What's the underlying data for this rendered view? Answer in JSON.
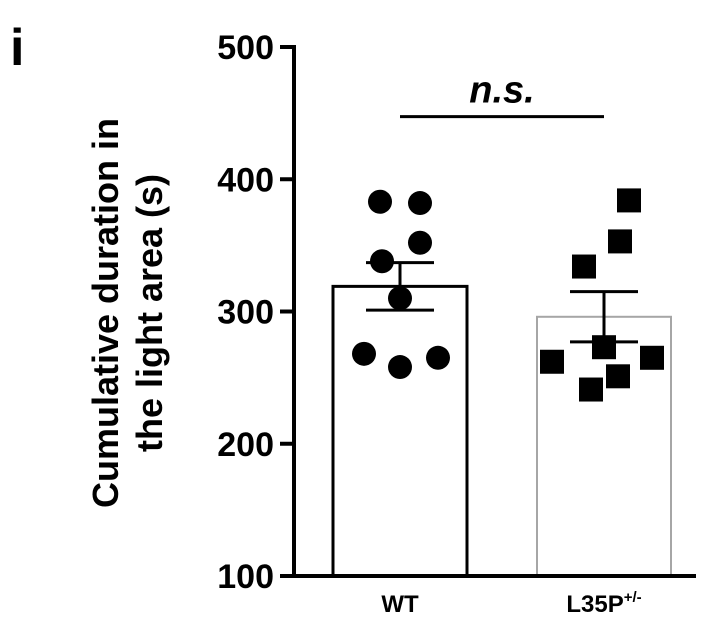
{
  "panel_label": "i",
  "chart_data": {
    "type": "bar",
    "ylabel_lines": [
      "Cumulative duration in",
      "the light area (s)"
    ],
    "ylim": [
      100,
      500
    ],
    "yticks": [
      100,
      200,
      300,
      400,
      500
    ],
    "categories": [
      {
        "label": "WT",
        "superscript": ""
      },
      {
        "label": "L35P",
        "superscript": "+/-"
      }
    ],
    "series": [
      {
        "values": [
          319,
          296
        ],
        "sem": [
          18,
          19
        ]
      }
    ],
    "points": [
      {
        "category": 0,
        "marker": "circle",
        "values": [
          383,
          382,
          352,
          338,
          310,
          268,
          265,
          258
        ]
      },
      {
        "category": 1,
        "marker": "square",
        "values": [
          384,
          353,
          334,
          273,
          262,
          265,
          251,
          241
        ]
      }
    ],
    "significance": {
      "label": "n.s.",
      "between": [
        0,
        1
      ],
      "y": 470
    },
    "colors": {
      "bar0": "#000000",
      "bar1": "#a6a6a6",
      "axis": "#000000",
      "marker": "#000000"
    }
  }
}
